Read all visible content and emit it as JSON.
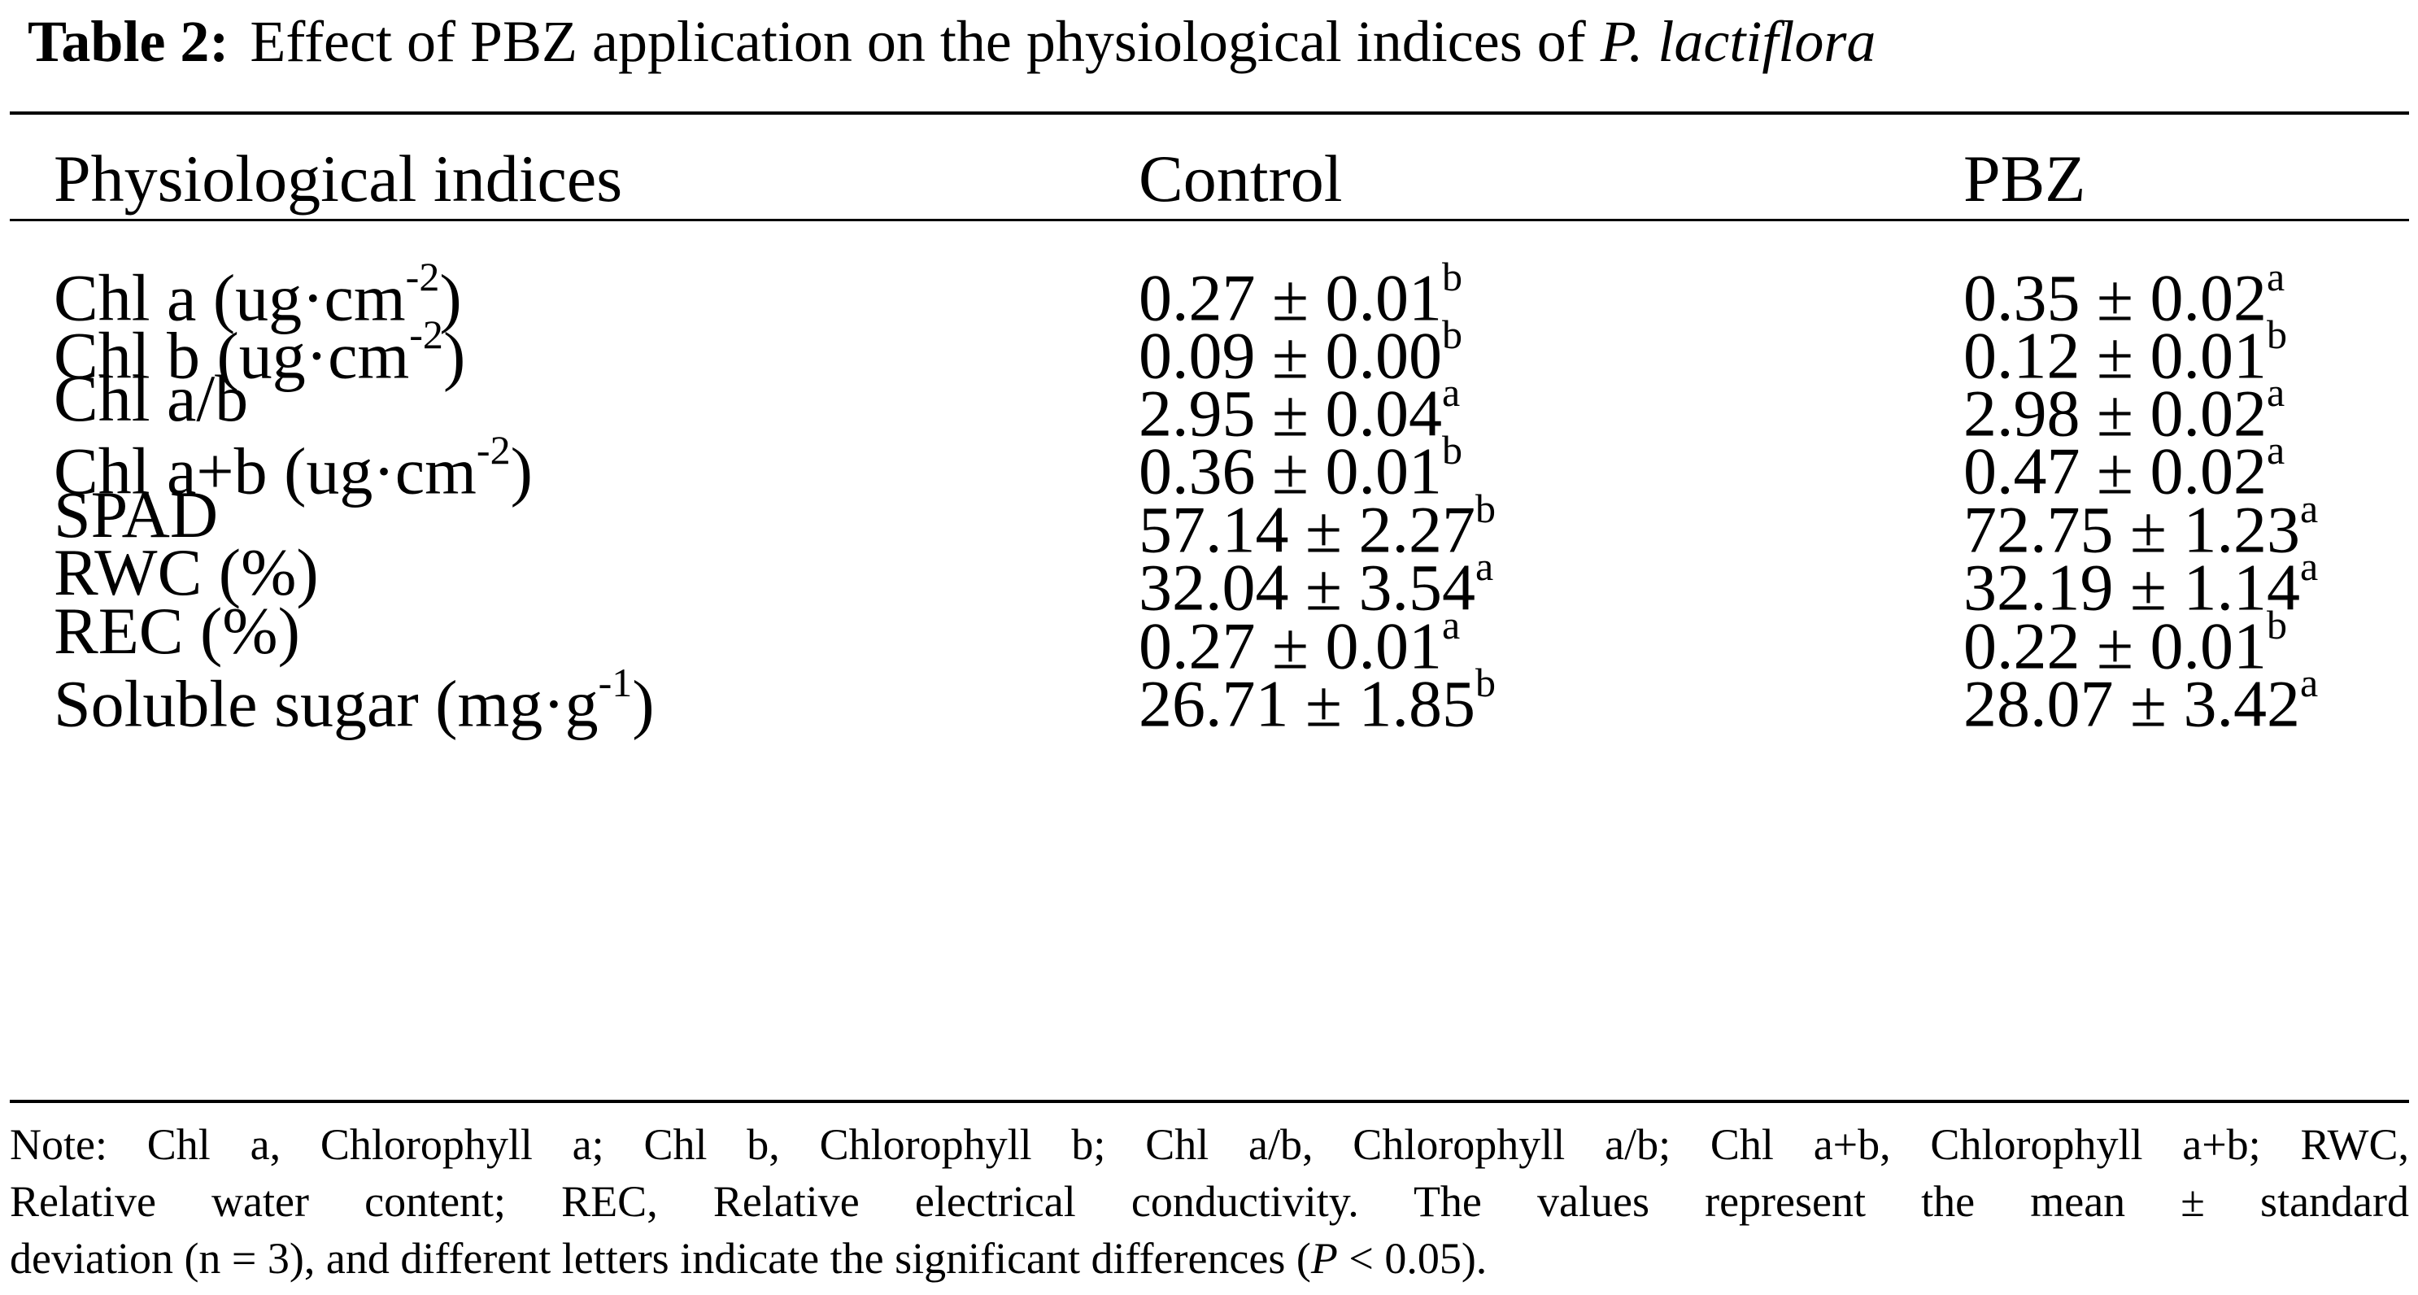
{
  "caption": {
    "label": "Table 2:",
    "text": "Effect of PBZ application on the physiological indices of",
    "species": "P. lactiflora"
  },
  "table": {
    "headers": [
      "Physiological indices",
      "Control",
      "PBZ"
    ],
    "rows": [
      {
        "index": "Chl a (ug·cm",
        "index_sup": "-2",
        "index_tail": ")",
        "control": "0.27 ± 0.01",
        "control_sig": "b",
        "pbz": "0.35 ± 0.02",
        "pbz_sig": "a"
      },
      {
        "index": "Chl b (ug·cm",
        "index_sup": "-2",
        "index_tail": ")",
        "control": "0.09 ± 0.00",
        "control_sig": "b",
        "pbz": "0.12 ± 0.01",
        "pbz_sig": "b"
      },
      {
        "index": "Chl a/b",
        "index_sup": "",
        "index_tail": "",
        "control": "2.95 ± 0.04",
        "control_sig": "a",
        "pbz": "2.98 ± 0.02",
        "pbz_sig": "a"
      },
      {
        "index": "Chl a+b (ug·cm",
        "index_sup": "-2",
        "index_tail": ")",
        "control": "0.36 ± 0.01",
        "control_sig": "b",
        "pbz": "0.47 ± 0.02",
        "pbz_sig": "a"
      },
      {
        "index": "SPAD",
        "index_sup": "",
        "index_tail": "",
        "control": "57.14 ± 2.27",
        "control_sig": "b",
        "pbz": "72.75 ± 1.23",
        "pbz_sig": "a"
      },
      {
        "index": "RWC (%)",
        "index_sup": "",
        "index_tail": "",
        "control": "32.04 ± 3.54",
        "control_sig": "a",
        "pbz": "32.19 ± 1.14",
        "pbz_sig": "a"
      },
      {
        "index": "REC (%)",
        "index_sup": "",
        "index_tail": "",
        "control": "0.27 ± 0.01",
        "control_sig": "a",
        "pbz": "0.22 ± 0.01",
        "pbz_sig": "b"
      },
      {
        "index": "Soluble sugar (mg·g",
        "index_sup": "-1",
        "index_tail": ")",
        "control": "26.71 ± 1.85",
        "control_sig": "b",
        "pbz": "28.07 ± 3.42",
        "pbz_sig": "a"
      }
    ]
  },
  "note": {
    "line1": "Note: Chl a, Chlorophyll a; Chl b, Chlorophyll b; Chl a/b, Chlorophyll a/b; Chl a+b, Chlorophyll a+b; RWC,",
    "line2": "Relative water content; REC, Relative electrical conductivity. The values represent the mean ± standard",
    "line3_pre": "deviation (n = 3), and different letters indicate the significant differences (",
    "line3_p": "P",
    "line3_post": " < 0.05)."
  }
}
